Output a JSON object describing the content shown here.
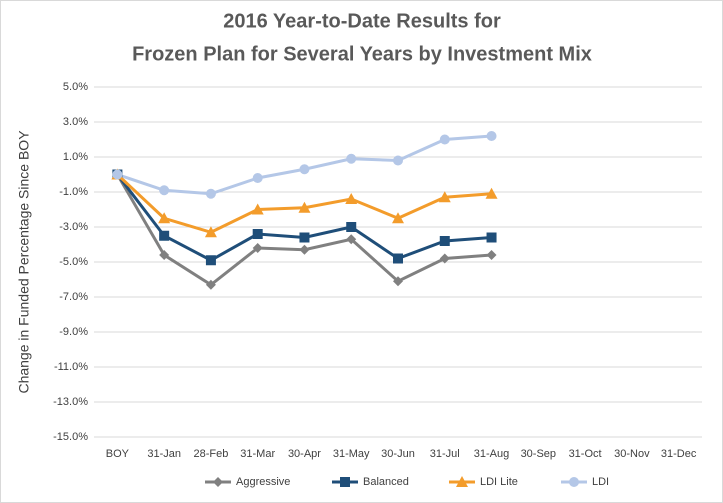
{
  "chart_data": {
    "type": "line",
    "title": [
      "2016 Year-to-Date Results for",
      "Frozen Plan for Several Years by Investment Mix"
    ],
    "y_label": "Change in Funded Percentage Since BOY",
    "categories": [
      "BOY",
      "31-Jan",
      "28-Feb",
      "31-Mar",
      "30-Apr",
      "31-May",
      "30-Jun",
      "31-Jul",
      "31-Aug",
      "30-Sep",
      "31-Oct",
      "30-Nov",
      "31-Dec"
    ],
    "series": [
      {
        "name": "Aggressive",
        "color": "#808080",
        "marker": "diamond",
        "values": [
          0,
          -4.6,
          -6.3,
          -4.2,
          -4.3,
          -3.7,
          -6.1,
          -4.8,
          -4.6,
          null,
          null,
          null,
          null
        ]
      },
      {
        "name": "Balanced",
        "color": "#1f4e79",
        "marker": "square",
        "values": [
          0,
          -3.5,
          -4.9,
          -3.4,
          -3.6,
          -3.0,
          -4.8,
          -3.8,
          -3.6,
          null,
          null,
          null,
          null
        ]
      },
      {
        "name": "LDI Lite",
        "color": "#f39c2b",
        "marker": "triangle",
        "values": [
          0,
          -2.5,
          -3.3,
          -2.0,
          -1.9,
          -1.4,
          -2.5,
          -1.3,
          -1.1,
          null,
          null,
          null,
          null
        ]
      },
      {
        "name": "LDI",
        "color": "#b4c7e7",
        "marker": "circle",
        "values": [
          0,
          -0.9,
          -1.1,
          -0.2,
          0.3,
          0.9,
          0.8,
          2.0,
          2.2,
          null,
          null,
          null,
          null
        ]
      }
    ],
    "ylim": [
      -15,
      5
    ],
    "yticks": [
      {
        "value": 5,
        "label": "5.0%"
      },
      {
        "value": 3,
        "label": "3.0%"
      },
      {
        "value": 1,
        "label": "1.0%"
      },
      {
        "value": -1,
        "label": "-1.0%"
      },
      {
        "value": -3,
        "label": "-3.0%"
      },
      {
        "value": -5,
        "label": "-5.0%"
      },
      {
        "value": -7,
        "label": "-7.0%"
      },
      {
        "value": -9,
        "label": "-9.0%"
      },
      {
        "value": -11,
        "label": "-11.0%"
      },
      {
        "value": -13,
        "label": "-13.0%"
      },
      {
        "value": -15,
        "label": "-15.0%"
      }
    ],
    "grid": true,
    "legend": "bottom"
  }
}
